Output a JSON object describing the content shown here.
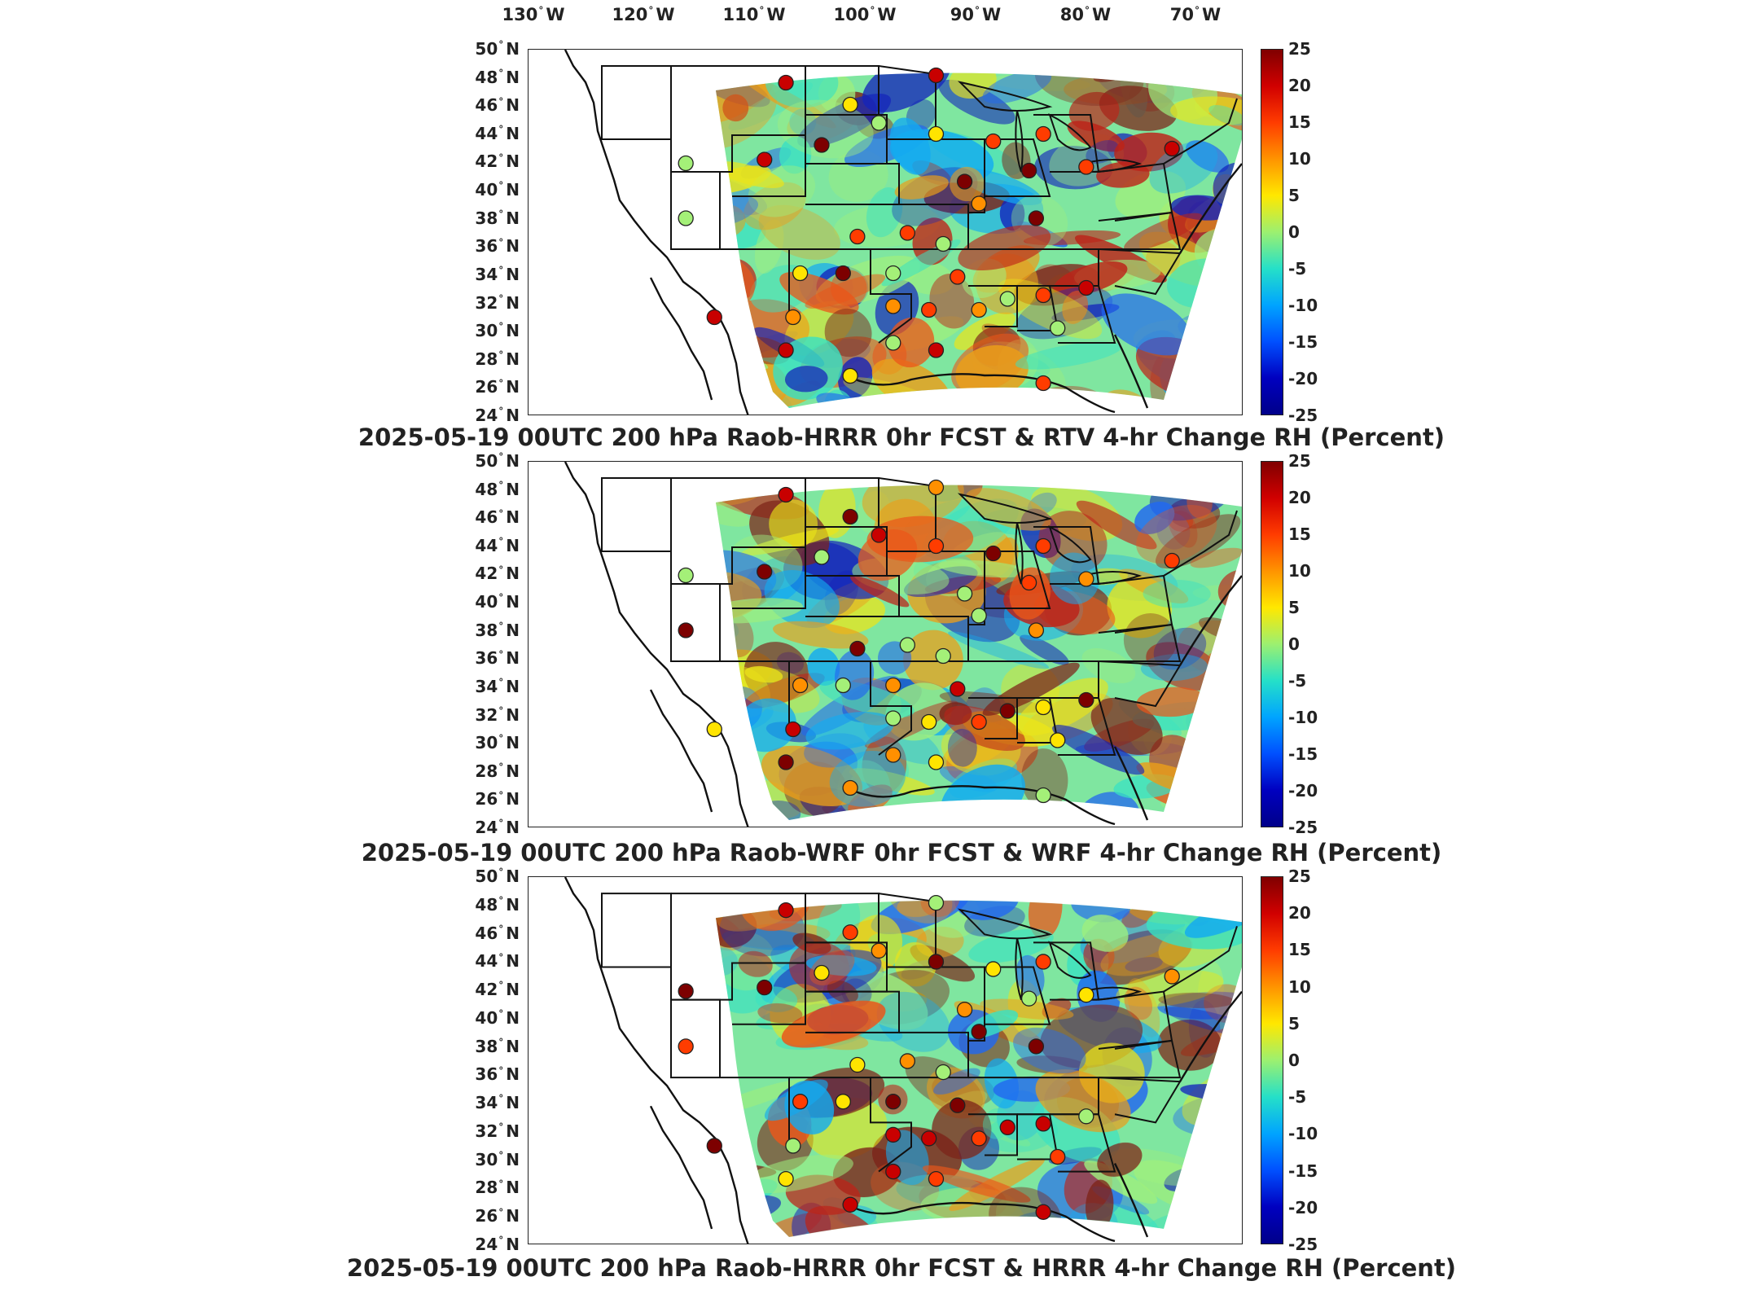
{
  "lon_labels": [
    "130",
    "120",
    "110",
    "100",
    "90",
    "80",
    "70"
  ],
  "lon_suffix": "W",
  "lat_labels": [
    "50",
    "48",
    "46",
    "44",
    "42",
    "40",
    "38",
    "36",
    "34",
    "32",
    "30",
    "28",
    "26",
    "24"
  ],
  "lat_suffix": "N",
  "colorbar_ticks": [
    "25",
    "20",
    "15",
    "10",
    "5",
    "0",
    "-5",
    "-10",
    "-15",
    "-20",
    "-25"
  ],
  "panels": [
    {
      "title": "2025-05-19 00UTC 200 hPa Raob-HRRR 0hr FCST & RTV 4-hr Change RH (Percent)"
    },
    {
      "title": "2025-05-19 00UTC 200 hPa Raob-WRF 0hr FCST & WRF 4-hr Change RH (Percent)"
    },
    {
      "title": "2025-05-19 00UTC 200 hPa Raob-HRRR 0hr FCST & HRRR 4-hr Change RH (Percent)"
    }
  ],
  "colors": {
    "scale_top": "#800000",
    "scale_mid": "#9cf070",
    "scale_bottom": "#00008a"
  }
}
